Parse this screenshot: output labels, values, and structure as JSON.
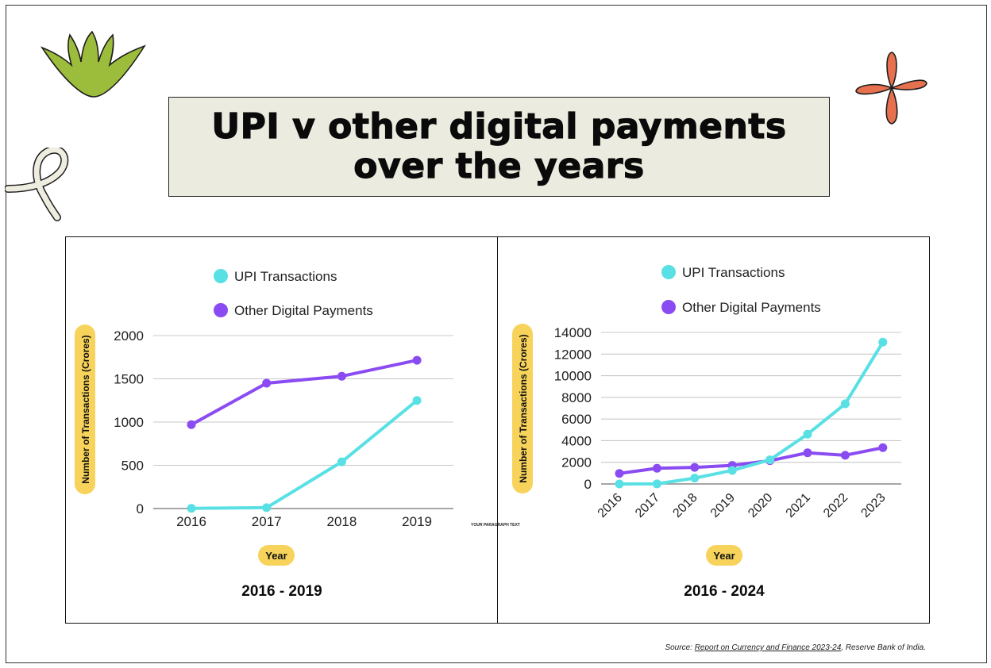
{
  "title": "UPI v other digital payments over the years",
  "paragraph_text": "YOUR PARAGRAPH TEXT",
  "source": {
    "prefix": "Source: ",
    "link": "Report on Currency and Finance 2023-24",
    "suffix": ", Reserve Bank of India."
  },
  "colors": {
    "upi": "#58e0e4",
    "other": "#8a4cf2",
    "label_bg": "#f7d35c",
    "title_bg": "#ecebdf",
    "grid": "#c8c8c8",
    "leaf": "#9cbd3c",
    "flower": "#e7704f",
    "loop": "#efece0"
  },
  "chart_data": [
    {
      "type": "line",
      "subtitle": "2016 - 2019",
      "xlabel": "Year",
      "ylabel": "Number of Transactions (Crores)",
      "x": [
        "2016",
        "2017",
        "2018",
        "2019"
      ],
      "ylim": [
        0,
        2000
      ],
      "yticks": [
        0,
        500,
        1000,
        1500,
        2000
      ],
      "grid": true,
      "legend": "top",
      "series": [
        {
          "name": "UPI Transactions",
          "color": "#58e0e4",
          "values": [
            2,
            10,
            540,
            1250
          ]
        },
        {
          "name": "Other Digital Payments",
          "color": "#8a4cf2",
          "values": [
            970,
            1450,
            1530,
            1715
          ]
        }
      ]
    },
    {
      "type": "line",
      "subtitle": "2016 - 2024",
      "xlabel": "Year",
      "ylabel": "Number of Transactions (Crores)",
      "x": [
        "2016",
        "2017",
        "2018",
        "2019",
        "2020",
        "2021",
        "2022",
        "2023"
      ],
      "ylim": [
        0,
        14000
      ],
      "yticks": [
        0,
        2000,
        4000,
        6000,
        8000,
        10000,
        12000,
        14000
      ],
      "grid": true,
      "legend": "top",
      "series": [
        {
          "name": "UPI Transactions",
          "color": "#58e0e4",
          "values": [
            2,
            10,
            540,
            1250,
            2230,
            4600,
            7400,
            13100
          ]
        },
        {
          "name": "Other Digital Payments",
          "color": "#8a4cf2",
          "values": [
            970,
            1450,
            1530,
            1715,
            2150,
            2880,
            2650,
            3350
          ]
        }
      ]
    }
  ]
}
